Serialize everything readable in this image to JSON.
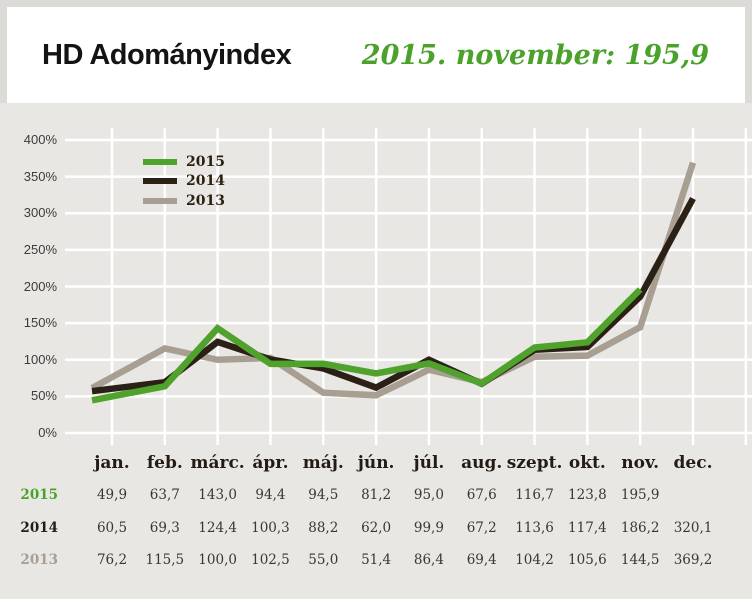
{
  "header": {
    "title": "HD Adományindex",
    "subtitle": "2015. november: 195,9"
  },
  "colors": {
    "page_bg": "#dcdbd8",
    "card_bg": "#ffffff",
    "section_bg": "#e9e7e4",
    "grid": "#ffffff",
    "header_green": "#4aa22a",
    "green": "#4fa22b",
    "dark": "#2b2016",
    "tan": "#a89e91"
  },
  "chart_data": {
    "type": "line",
    "title": "HD Adományindex",
    "categories": [
      "jan.",
      "feb.",
      "márc.",
      "ápr.",
      "máj.",
      "jún.",
      "júl.",
      "aug.",
      "szept.",
      "okt.",
      "nov.",
      "dec."
    ],
    "series": [
      {
        "name": "2015",
        "color_key": "green",
        "values": [
          49.9,
          63.7,
          143.0,
          94.4,
          94.5,
          81.2,
          95.0,
          67.6,
          116.7,
          123.8,
          195.9,
          null
        ]
      },
      {
        "name": "2014",
        "color_key": "dark",
        "values": [
          60.5,
          69.3,
          124.4,
          100.3,
          88.2,
          62.0,
          99.9,
          67.2,
          113.6,
          117.4,
          186.2,
          320.1
        ]
      },
      {
        "name": "2013",
        "color_key": "tan",
        "values": [
          76.2,
          115.5,
          100.0,
          102.5,
          55.0,
          51.4,
          86.4,
          69.4,
          104.2,
          105.6,
          144.5,
          369.2
        ]
      }
    ],
    "ylim": [
      0,
      400
    ],
    "ytick_step": 50,
    "ytick_suffix": "%",
    "grid": true,
    "legend_position": "top-left",
    "xlabel": "",
    "ylabel": ""
  }
}
